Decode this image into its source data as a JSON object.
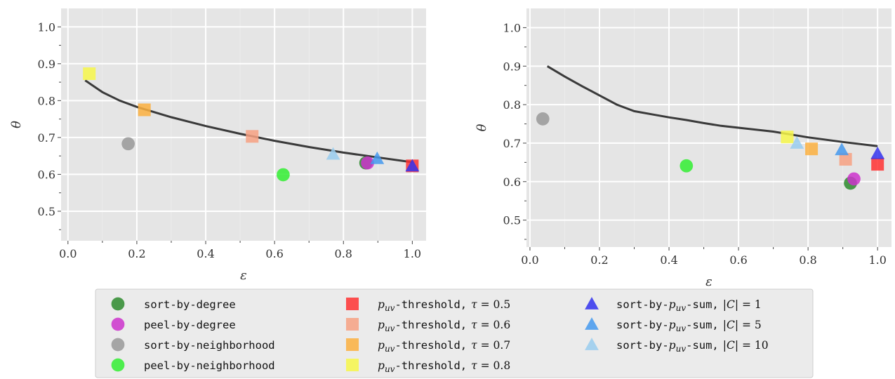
{
  "chart_data": [
    {
      "type": "scatter",
      "xlabel": "ε",
      "ylabel": "θ",
      "xlim": [
        -0.02,
        1.04
      ],
      "ylim": [
        0.42,
        1.05
      ],
      "xticks": [
        "0.0",
        "0.2",
        "0.4",
        "0.6",
        "0.8",
        "1.0"
      ],
      "yticks": [
        "0.5",
        "0.6",
        "0.7",
        "0.8",
        "0.9",
        "1.0"
      ],
      "grid": true,
      "curve": {
        "x": [
          0.05,
          0.1,
          0.15,
          0.2,
          0.3,
          0.4,
          0.5,
          0.6,
          0.7,
          0.8,
          0.9,
          1.0
        ],
        "y": [
          0.855,
          0.823,
          0.8,
          0.783,
          0.755,
          0.731,
          0.71,
          0.691,
          0.674,
          0.659,
          0.646,
          0.633
        ]
      },
      "points": [
        {
          "series": 0,
          "x": 0.865,
          "y": 0.631
        },
        {
          "series": 1,
          "x": 0.87,
          "y": 0.631
        },
        {
          "series": 2,
          "x": 0.175,
          "y": 0.683
        },
        {
          "series": 3,
          "x": 0.625,
          "y": 0.599
        },
        {
          "series": 4,
          "x": 1.0,
          "y": 0.623
        },
        {
          "series": 5,
          "x": 0.535,
          "y": 0.703
        },
        {
          "series": 6,
          "x": 0.222,
          "y": 0.775
        },
        {
          "series": 7,
          "x": 0.062,
          "y": 0.873
        },
        {
          "series": 8,
          "x": 1.0,
          "y": 0.623
        },
        {
          "series": 9,
          "x": 0.898,
          "y": 0.643
        },
        {
          "series": 10,
          "x": 0.77,
          "y": 0.655
        }
      ]
    },
    {
      "type": "scatter",
      "xlabel": "ε",
      "ylabel": "θ",
      "xlim": [
        -0.01,
        1.04
      ],
      "ylim": [
        0.43,
        1.05
      ],
      "xticks": [
        "0.0",
        "0.2",
        "0.4",
        "0.6",
        "0.8",
        "1.0"
      ],
      "yticks": [
        "0.5",
        "0.6",
        "0.7",
        "0.8",
        "0.9",
        "1.0"
      ],
      "grid": true,
      "curve": {
        "x": [
          0.05,
          0.1,
          0.15,
          0.2,
          0.25,
          0.3,
          0.35,
          0.4,
          0.45,
          0.5,
          0.55,
          0.6,
          0.7,
          0.8,
          0.9,
          1.0
        ],
        "y": [
          0.9,
          0.873,
          0.848,
          0.824,
          0.8,
          0.783,
          0.775,
          0.767,
          0.76,
          0.752,
          0.745,
          0.74,
          0.73,
          0.715,
          0.703,
          0.692
        ]
      },
      "points": [
        {
          "series": 0,
          "x": 0.922,
          "y": 0.596
        },
        {
          "series": 1,
          "x": 0.932,
          "y": 0.607
        },
        {
          "series": 2,
          "x": 0.037,
          "y": 0.763
        },
        {
          "series": 3,
          "x": 0.45,
          "y": 0.641
        },
        {
          "series": 4,
          "x": 1.0,
          "y": 0.645
        },
        {
          "series": 5,
          "x": 0.908,
          "y": 0.658
        },
        {
          "series": 6,
          "x": 0.81,
          "y": 0.685
        },
        {
          "series": 7,
          "x": 0.74,
          "y": 0.716
        },
        {
          "series": 8,
          "x": 1.0,
          "y": 0.673
        },
        {
          "series": 9,
          "x": 0.897,
          "y": 0.683
        },
        {
          "series": 10,
          "x": 0.768,
          "y": 0.7
        }
      ]
    }
  ],
  "legend": {
    "placement": "bottom-center",
    "entries": [
      {
        "prefix": "sort-by-degree",
        "math": "",
        "suffix": "",
        "value": "",
        "marker": "circle",
        "color": "#2e8b2e"
      },
      {
        "prefix": "peel-by-degree",
        "math": "",
        "suffix": "",
        "value": "",
        "marker": "circle",
        "color": "#cc33cc"
      },
      {
        "prefix": "sort-by-neighborhood",
        "math": "",
        "suffix": "",
        "value": "",
        "marker": "circle",
        "color": "#999999"
      },
      {
        "prefix": "peel-by-neighborhood",
        "math": "",
        "suffix": "",
        "value": "",
        "marker": "circle",
        "color": "#33ee33"
      },
      {
        "prefix": "",
        "math": "p",
        "sub": "uv",
        "suffix": "-threshold,",
        "var": "τ",
        "value": " = 0.5",
        "marker": "square",
        "color": "#ff3333"
      },
      {
        "prefix": "",
        "math": "p",
        "sub": "uv",
        "suffix": "-threshold,",
        "var": "τ",
        "value": " = 0.6",
        "marker": "square",
        "color": "#f7a183"
      },
      {
        "prefix": "",
        "math": "p",
        "sub": "uv",
        "suffix": "-threshold,",
        "var": "τ",
        "value": " = 0.7",
        "marker": "square",
        "color": "#fbb040"
      },
      {
        "prefix": "",
        "math": "p",
        "sub": "uv",
        "suffix": "-threshold,",
        "var": "τ",
        "value": " = 0.8",
        "marker": "square",
        "color": "#f7f74a"
      },
      {
        "prefix": "sort-by-",
        "math": "p",
        "sub": "uv",
        "suffix": "-sum,",
        "var": "|C|",
        "value": " = 1",
        "marker": "triangle",
        "color": "#3333ee"
      },
      {
        "prefix": "sort-by-",
        "math": "p",
        "sub": "uv",
        "suffix": "-sum,",
        "var": "|C|",
        "value": " = 5",
        "marker": "triangle",
        "color": "#4499ee"
      },
      {
        "prefix": "sort-by-",
        "math": "p",
        "sub": "uv",
        "suffix": "-sum,",
        "var": "|C|",
        "value": " = 10",
        "marker": "triangle",
        "color": "#99ccee"
      }
    ]
  }
}
